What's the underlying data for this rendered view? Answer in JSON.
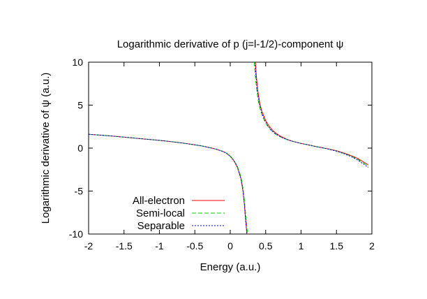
{
  "chart_data": {
    "type": "line",
    "title": "Logarithmic derivative of p (j=l-1/2)-component ψ",
    "xlabel": "Energy (a.u.)",
    "ylabel": "Logarithmic derivative of ψ (a.u.)",
    "xlim": [
      -2,
      2
    ],
    "ylim": [
      -10,
      10
    ],
    "xticks": [
      "-2",
      "-1.5",
      "-1",
      "-0.5",
      "0",
      "0.5",
      "1",
      "1.5",
      "2"
    ],
    "yticks": [
      "-10",
      "-5",
      "0",
      "5",
      "10"
    ],
    "grid": false,
    "legend_position": "bottom-left",
    "series": [
      {
        "name": "All-electron",
        "color": "#ff0000",
        "dash": "solid",
        "branches": [
          {
            "x": [
              -2.0,
              -1.8,
              -1.6,
              -1.4,
              -1.2,
              -1.0,
              -0.8,
              -0.6,
              -0.4,
              -0.3,
              -0.2,
              -0.1,
              -0.05,
              0.0,
              0.05,
              0.1,
              0.15,
              0.18,
              0.2,
              0.22,
              0.235
            ],
            "y": [
              1.6,
              1.5,
              1.35,
              1.2,
              1.05,
              0.9,
              0.72,
              0.5,
              0.25,
              0.07,
              -0.12,
              -0.4,
              -0.62,
              -0.95,
              -1.45,
              -2.2,
              -3.5,
              -5.0,
              -6.6,
              -8.6,
              -10.0
            ]
          },
          {
            "x": [
              0.355,
              0.37,
              0.39,
              0.42,
              0.45,
              0.5,
              0.55,
              0.6,
              0.65,
              0.7,
              0.8,
              0.9,
              1.0,
              1.1,
              1.2,
              1.3,
              1.4,
              1.5,
              1.6,
              1.7,
              1.8,
              1.95
            ],
            "y": [
              10.0,
              8.2,
              6.6,
              5.1,
              4.2,
              3.2,
              2.55,
              2.05,
              1.7,
              1.42,
              1.02,
              0.76,
              0.55,
              0.38,
              0.2,
              0.05,
              -0.12,
              -0.3,
              -0.55,
              -0.85,
              -1.2,
              -1.95
            ]
          }
        ]
      },
      {
        "name": "Semi-local",
        "color": "#00cc00",
        "dash": "6,3",
        "branches": [
          {
            "x": [
              -2.0,
              -1.8,
              -1.6,
              -1.4,
              -1.2,
              -1.0,
              -0.8,
              -0.6,
              -0.4,
              -0.3,
              -0.2,
              -0.1,
              -0.05,
              0.0,
              0.05,
              0.1,
              0.15,
              0.18,
              0.2,
              0.22,
              0.24,
              0.245
            ],
            "y": [
              1.6,
              1.5,
              1.35,
              1.2,
              1.05,
              0.9,
              0.72,
              0.5,
              0.25,
              0.07,
              -0.12,
              -0.4,
              -0.6,
              -0.92,
              -1.4,
              -2.1,
              -3.3,
              -4.7,
              -6.1,
              -7.9,
              -9.7,
              -10.0
            ]
          },
          {
            "x": [
              0.34,
              0.355,
              0.375,
              0.4,
              0.43,
              0.47,
              0.52,
              0.57,
              0.62,
              0.68,
              0.75,
              0.85,
              1.0,
              1.1,
              1.2,
              1.3,
              1.4,
              1.5,
              1.6,
              1.7,
              1.8,
              1.95
            ],
            "y": [
              10.0,
              8.3,
              6.7,
              5.3,
              4.3,
              3.4,
              2.65,
              2.12,
              1.75,
              1.42,
              1.15,
              0.85,
              0.55,
              0.38,
              0.2,
              0.04,
              -0.14,
              -0.34,
              -0.6,
              -0.92,
              -1.3,
              -2.1
            ]
          }
        ]
      },
      {
        "name": "Separable",
        "color": "#0000ff",
        "dash": "2,2",
        "branches": [
          {
            "x": [
              -2.0,
              -1.8,
              -1.6,
              -1.4,
              -1.2,
              -1.0,
              -0.8,
              -0.6,
              -0.4,
              -0.3,
              -0.2,
              -0.1,
              -0.05,
              0.0,
              0.05,
              0.1,
              0.15,
              0.18,
              0.2,
              0.22,
              0.235
            ],
            "y": [
              1.6,
              1.5,
              1.35,
              1.2,
              1.05,
              0.9,
              0.72,
              0.5,
              0.25,
              0.07,
              -0.12,
              -0.4,
              -0.62,
              -0.95,
              -1.45,
              -2.2,
              -3.5,
              -5.0,
              -6.6,
              -8.6,
              -10.0
            ]
          },
          {
            "x": [
              0.35,
              0.365,
              0.385,
              0.41,
              0.44,
              0.48,
              0.53,
              0.58,
              0.63,
              0.69,
              0.76,
              0.86,
              1.0,
              1.1,
              1.2,
              1.3,
              1.4,
              1.5,
              1.6,
              1.7,
              1.8,
              1.95
            ],
            "y": [
              10.0,
              8.2,
              6.6,
              5.2,
              4.25,
              3.35,
              2.6,
              2.08,
              1.72,
              1.4,
              1.12,
              0.83,
              0.54,
              0.37,
              0.19,
              0.03,
              -0.15,
              -0.36,
              -0.63,
              -0.97,
              -1.38,
              -2.25
            ]
          }
        ]
      }
    ]
  }
}
